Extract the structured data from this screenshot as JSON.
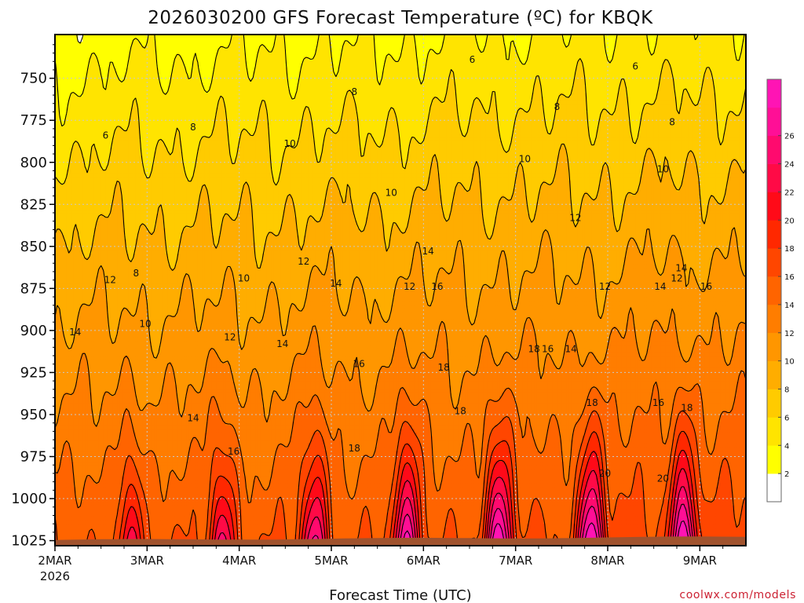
{
  "chart_data": {
    "type": "heatmap",
    "title": "2026030200 GFS Forecast Temperature (ºC) for KBQK",
    "xlabel": "Forecast Time (UTC)",
    "ylabel": "",
    "credit": "coolwx.com/models",
    "x_ticks": [
      "2MAR",
      "3MAR",
      "4MAR",
      "5MAR",
      "6MAR",
      "7MAR",
      "8MAR",
      "9MAR"
    ],
    "x_year": "2026",
    "xlim": [
      0,
      7.5
    ],
    "y_ticks": [
      "750",
      "775",
      "800",
      "825",
      "850",
      "875",
      "900",
      "925",
      "950",
      "975",
      "1000",
      "1025"
    ],
    "ylim": [
      724,
      1028
    ],
    "y_units": "hPa",
    "colorbar": {
      "levels": [
        2,
        4,
        6,
        8,
        10,
        12,
        14,
        16,
        18,
        20,
        22,
        24,
        26,
        28
      ],
      "colors": [
        "#ffffff",
        "#ffff00",
        "#ffe400",
        "#ffcb00",
        "#ffad00",
        "#ff9600",
        "#ff7d00",
        "#ff6400",
        "#ff4600",
        "#ff2800",
        "#ff0a18",
        "#ff0a46",
        "#ff0a6e",
        "#ff0f96",
        "#ff14b4"
      ],
      "tick_labels": [
        "2",
        "4",
        "6",
        "8",
        "10",
        "12",
        "14",
        "16",
        "18",
        "20",
        "22",
        "24",
        "26"
      ]
    },
    "surface_color": "#a0522d",
    "contour_labels": [
      {
        "text": "6",
        "t": 0.55,
        "p": 784
      },
      {
        "text": "8",
        "t": 1.5,
        "p": 779
      },
      {
        "text": "10",
        "t": 2.55,
        "p": 789
      },
      {
        "text": "8",
        "t": 3.25,
        "p": 758
      },
      {
        "text": "6",
        "t": 4.53,
        "p": 739
      },
      {
        "text": "6",
        "t": 6.3,
        "p": 743
      },
      {
        "text": "8",
        "t": 5.45,
        "p": 767
      },
      {
        "text": "8",
        "t": 6.7,
        "p": 776
      },
      {
        "text": "10",
        "t": 3.65,
        "p": 818
      },
      {
        "text": "10",
        "t": 5.1,
        "p": 798
      },
      {
        "text": "10",
        "t": 6.6,
        "p": 804
      },
      {
        "text": "12",
        "t": 5.65,
        "p": 833
      },
      {
        "text": "14",
        "t": 6.8,
        "p": 863
      },
      {
        "text": "12",
        "t": 0.6,
        "p": 870
      },
      {
        "text": "8",
        "t": 0.88,
        "p": 866
      },
      {
        "text": "10",
        "t": 0.98,
        "p": 896
      },
      {
        "text": "10",
        "t": 2.05,
        "p": 869
      },
      {
        "text": "12",
        "t": 2.7,
        "p": 859
      },
      {
        "text": "14",
        "t": 3.05,
        "p": 872
      },
      {
        "text": "12",
        "t": 3.85,
        "p": 874
      },
      {
        "text": "14",
        "t": 4.05,
        "p": 853
      },
      {
        "text": "16",
        "t": 4.15,
        "p": 874
      },
      {
        "text": "12",
        "t": 5.97,
        "p": 874
      },
      {
        "text": "14",
        "t": 6.57,
        "p": 874
      },
      {
        "text": "12",
        "t": 6.75,
        "p": 869
      },
      {
        "text": "16",
        "t": 7.07,
        "p": 874
      },
      {
        "text": "14",
        "t": 0.22,
        "p": 901
      },
      {
        "text": "12",
        "t": 1.9,
        "p": 904
      },
      {
        "text": "14",
        "t": 2.47,
        "p": 908
      },
      {
        "text": "16",
        "t": 3.3,
        "p": 920
      },
      {
        "text": "18",
        "t": 4.22,
        "p": 922
      },
      {
        "text": "18",
        "t": 5.2,
        "p": 911
      },
      {
        "text": "16",
        "t": 5.35,
        "p": 911
      },
      {
        "text": "14",
        "t": 5.6,
        "p": 911
      },
      {
        "text": "14",
        "t": 1.5,
        "p": 952
      },
      {
        "text": "16",
        "t": 1.94,
        "p": 972
      },
      {
        "text": "18",
        "t": 3.25,
        "p": 970
      },
      {
        "text": "18",
        "t": 4.4,
        "p": 948
      },
      {
        "text": "18",
        "t": 5.83,
        "p": 943
      },
      {
        "text": "16",
        "t": 6.55,
        "p": 943
      },
      {
        "text": "18",
        "t": 6.86,
        "p": 946
      },
      {
        "text": "20",
        "t": 5.97,
        "p": 985
      },
      {
        "text": "20",
        "t": 6.6,
        "p": 988
      }
    ]
  }
}
